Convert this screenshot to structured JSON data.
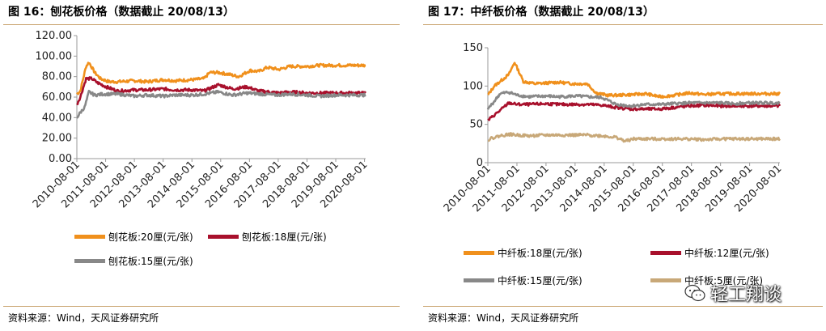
{
  "left": {
    "title": "图 16：刨花板价格（数据截止 20/08/13）",
    "source": "资料来源：Wind，天风证券研究所",
    "chart_data": {
      "type": "line",
      "title": "",
      "xlabel": "",
      "ylabel": "",
      "ylim": [
        0,
        120
      ],
      "y_ticks": [
        "0.00",
        "20.00",
        "40.00",
        "60.00",
        "80.00",
        "100.00",
        "120.00"
      ],
      "x_ticks": [
        "2010-08-01",
        "2011-08-01",
        "2012-08-01",
        "2013-08-01",
        "2014-08-01",
        "2015-08-01",
        "2016-08-01",
        "2017-08-01",
        "2018-08-01",
        "2019-08-01",
        "2020-08-01"
      ],
      "grid": false,
      "legend": "bottom",
      "series": [
        {
          "name": "刨花板:20厘(元/张)",
          "color": "#f0901c",
          "x": [
            2010.58,
            2010.7,
            2010.9,
            2011.0,
            2011.2,
            2011.4,
            2011.7,
            2012.0,
            2012.6,
            2013.0,
            2013.6,
            2014.0,
            2014.6,
            2015.0,
            2015.2,
            2015.5,
            2015.9,
            2016.2,
            2016.6,
            2016.9,
            2017.2,
            2017.6,
            2018.0,
            2018.6,
            2019.0,
            2019.6,
            2020.0,
            2020.62
          ],
          "y": [
            63,
            66,
            90,
            94,
            84,
            78,
            75,
            75,
            76,
            75,
            77,
            76,
            77,
            78,
            84,
            84,
            82,
            80,
            86,
            85,
            89,
            87,
            90,
            90,
            91,
            91,
            91,
            91
          ]
        },
        {
          "name": "刨花板:18厘(元/张)",
          "color": "#a8102c",
          "x": [
            2010.58,
            2010.7,
            2010.9,
            2011.1,
            2011.3,
            2011.6,
            2012.0,
            2012.6,
            2013.0,
            2013.6,
            2014.0,
            2014.6,
            2015.0,
            2015.5,
            2016.0,
            2016.5,
            2016.9,
            2017.3,
            2017.6,
            2018.0,
            2018.6,
            2019.0,
            2019.6,
            2020.0,
            2020.62
          ],
          "y": [
            53,
            60,
            78,
            78,
            74,
            70,
            66,
            67,
            67,
            68,
            67,
            67,
            66,
            72,
            68,
            70,
            66,
            65,
            64,
            65,
            64,
            64,
            64,
            64,
            64
          ]
        },
        {
          "name": "刨花板:15厘(元/张)",
          "color": "#888888",
          "x": [
            2010.58,
            2010.7,
            2010.85,
            2011.0,
            2011.2,
            2011.5,
            2012.0,
            2012.6,
            2013.0,
            2013.6,
            2014.0,
            2014.6,
            2015.0,
            2015.5,
            2016.0,
            2016.5,
            2017.0,
            2017.5,
            2018.0,
            2018.6,
            2019.0,
            2019.6,
            2020.0,
            2020.62
          ],
          "y": [
            40,
            45,
            50,
            65,
            62,
            63,
            63,
            61,
            62,
            61,
            62,
            62,
            63,
            65,
            62,
            64,
            63,
            62,
            63,
            62,
            61,
            62,
            62,
            62
          ]
        }
      ]
    }
  },
  "right": {
    "title": "图 17：中纤板价格（数据截止 20/08/13）",
    "source": "资料来源：Wind，天风证券研究所",
    "chart_data": {
      "type": "line",
      "title": "",
      "xlabel": "",
      "ylabel": "",
      "ylim": [
        0,
        150
      ],
      "y_ticks": [
        "0",
        "50",
        "100",
        "150"
      ],
      "x_ticks": [
        "2010-08-01",
        "2011-08-01",
        "2012-08-01",
        "2013-08-01",
        "2014-08-01",
        "2015-08-01",
        "2016-08-01",
        "2017-08-01",
        "2018-08-01",
        "2019-08-01",
        "2020-08-01"
      ],
      "grid": false,
      "legend": "bottom",
      "series": [
        {
          "name": "中纤板:18厘(元/张)",
          "color": "#f0901c",
          "x": [
            2010.58,
            2010.8,
            2011.0,
            2011.3,
            2011.5,
            2011.8,
            2012.2,
            2012.6,
            2013.0,
            2013.5,
            2014.0,
            2014.3,
            2014.7,
            2015.0,
            2015.6,
            2016.0,
            2016.5,
            2017.0,
            2017.5,
            2018.0,
            2018.6,
            2019.0,
            2019.6,
            2020.0,
            2020.62
          ],
          "y": [
            88,
            100,
            106,
            115,
            131,
            106,
            103,
            104,
            105,
            103,
            103,
            91,
            88,
            88,
            89,
            90,
            86,
            88,
            91,
            89,
            90,
            90,
            90,
            90,
            90
          ]
        },
        {
          "name": "中纤板:12厘(元/张)",
          "color": "#a8102c",
          "x": [
            2010.58,
            2010.8,
            2011.0,
            2011.3,
            2011.6,
            2012.0,
            2012.6,
            2013.0,
            2013.6,
            2014.0,
            2014.5,
            2015.0,
            2015.5,
            2016.0,
            2016.5,
            2017.0,
            2017.5,
            2018.0,
            2018.6,
            2019.0,
            2019.6,
            2020.0,
            2020.62
          ],
          "y": [
            55,
            62,
            68,
            78,
            76,
            76,
            77,
            76,
            76,
            76,
            75,
            72,
            70,
            70,
            70,
            72,
            74,
            75,
            74,
            74,
            74,
            74,
            74
          ]
        },
        {
          "name": "中纤板:15厘(元/张)",
          "color": "#888888",
          "x": [
            2010.58,
            2010.8,
            2011.0,
            2011.3,
            2011.6,
            2012.0,
            2012.6,
            2013.0,
            2013.6,
            2014.0,
            2014.5,
            2015.0,
            2015.5,
            2016.0,
            2016.5,
            2017.0,
            2017.5,
            2018.0,
            2018.6,
            2019.0,
            2019.6,
            2020.0,
            2020.62
          ],
          "y": [
            70,
            80,
            90,
            92,
            88,
            86,
            87,
            86,
            87,
            86,
            85,
            76,
            74,
            76,
            76,
            77,
            78,
            78,
            78,
            77,
            78,
            78,
            78
          ]
        },
        {
          "name": "中纤板:5厘(元/张)",
          "color": "#c8a878",
          "x": [
            2010.58,
            2010.8,
            2011.0,
            2011.3,
            2011.6,
            2012.0,
            2012.6,
            2013.0,
            2013.6,
            2014.0,
            2014.5,
            2015.0,
            2015.3,
            2015.6,
            2016.0,
            2016.5,
            2017.0,
            2017.5,
            2018.0,
            2018.6,
            2019.0,
            2019.6,
            2020.0,
            2020.62
          ],
          "y": [
            30,
            33,
            35,
            37,
            36,
            35,
            36,
            36,
            36,
            36,
            35,
            33,
            28,
            31,
            31,
            31,
            31,
            31,
            30,
            31,
            31,
            31,
            31,
            31
          ]
        }
      ]
    }
  },
  "watermark": {
    "text": "轻工翔谈",
    "icon": "wechat-icon"
  }
}
